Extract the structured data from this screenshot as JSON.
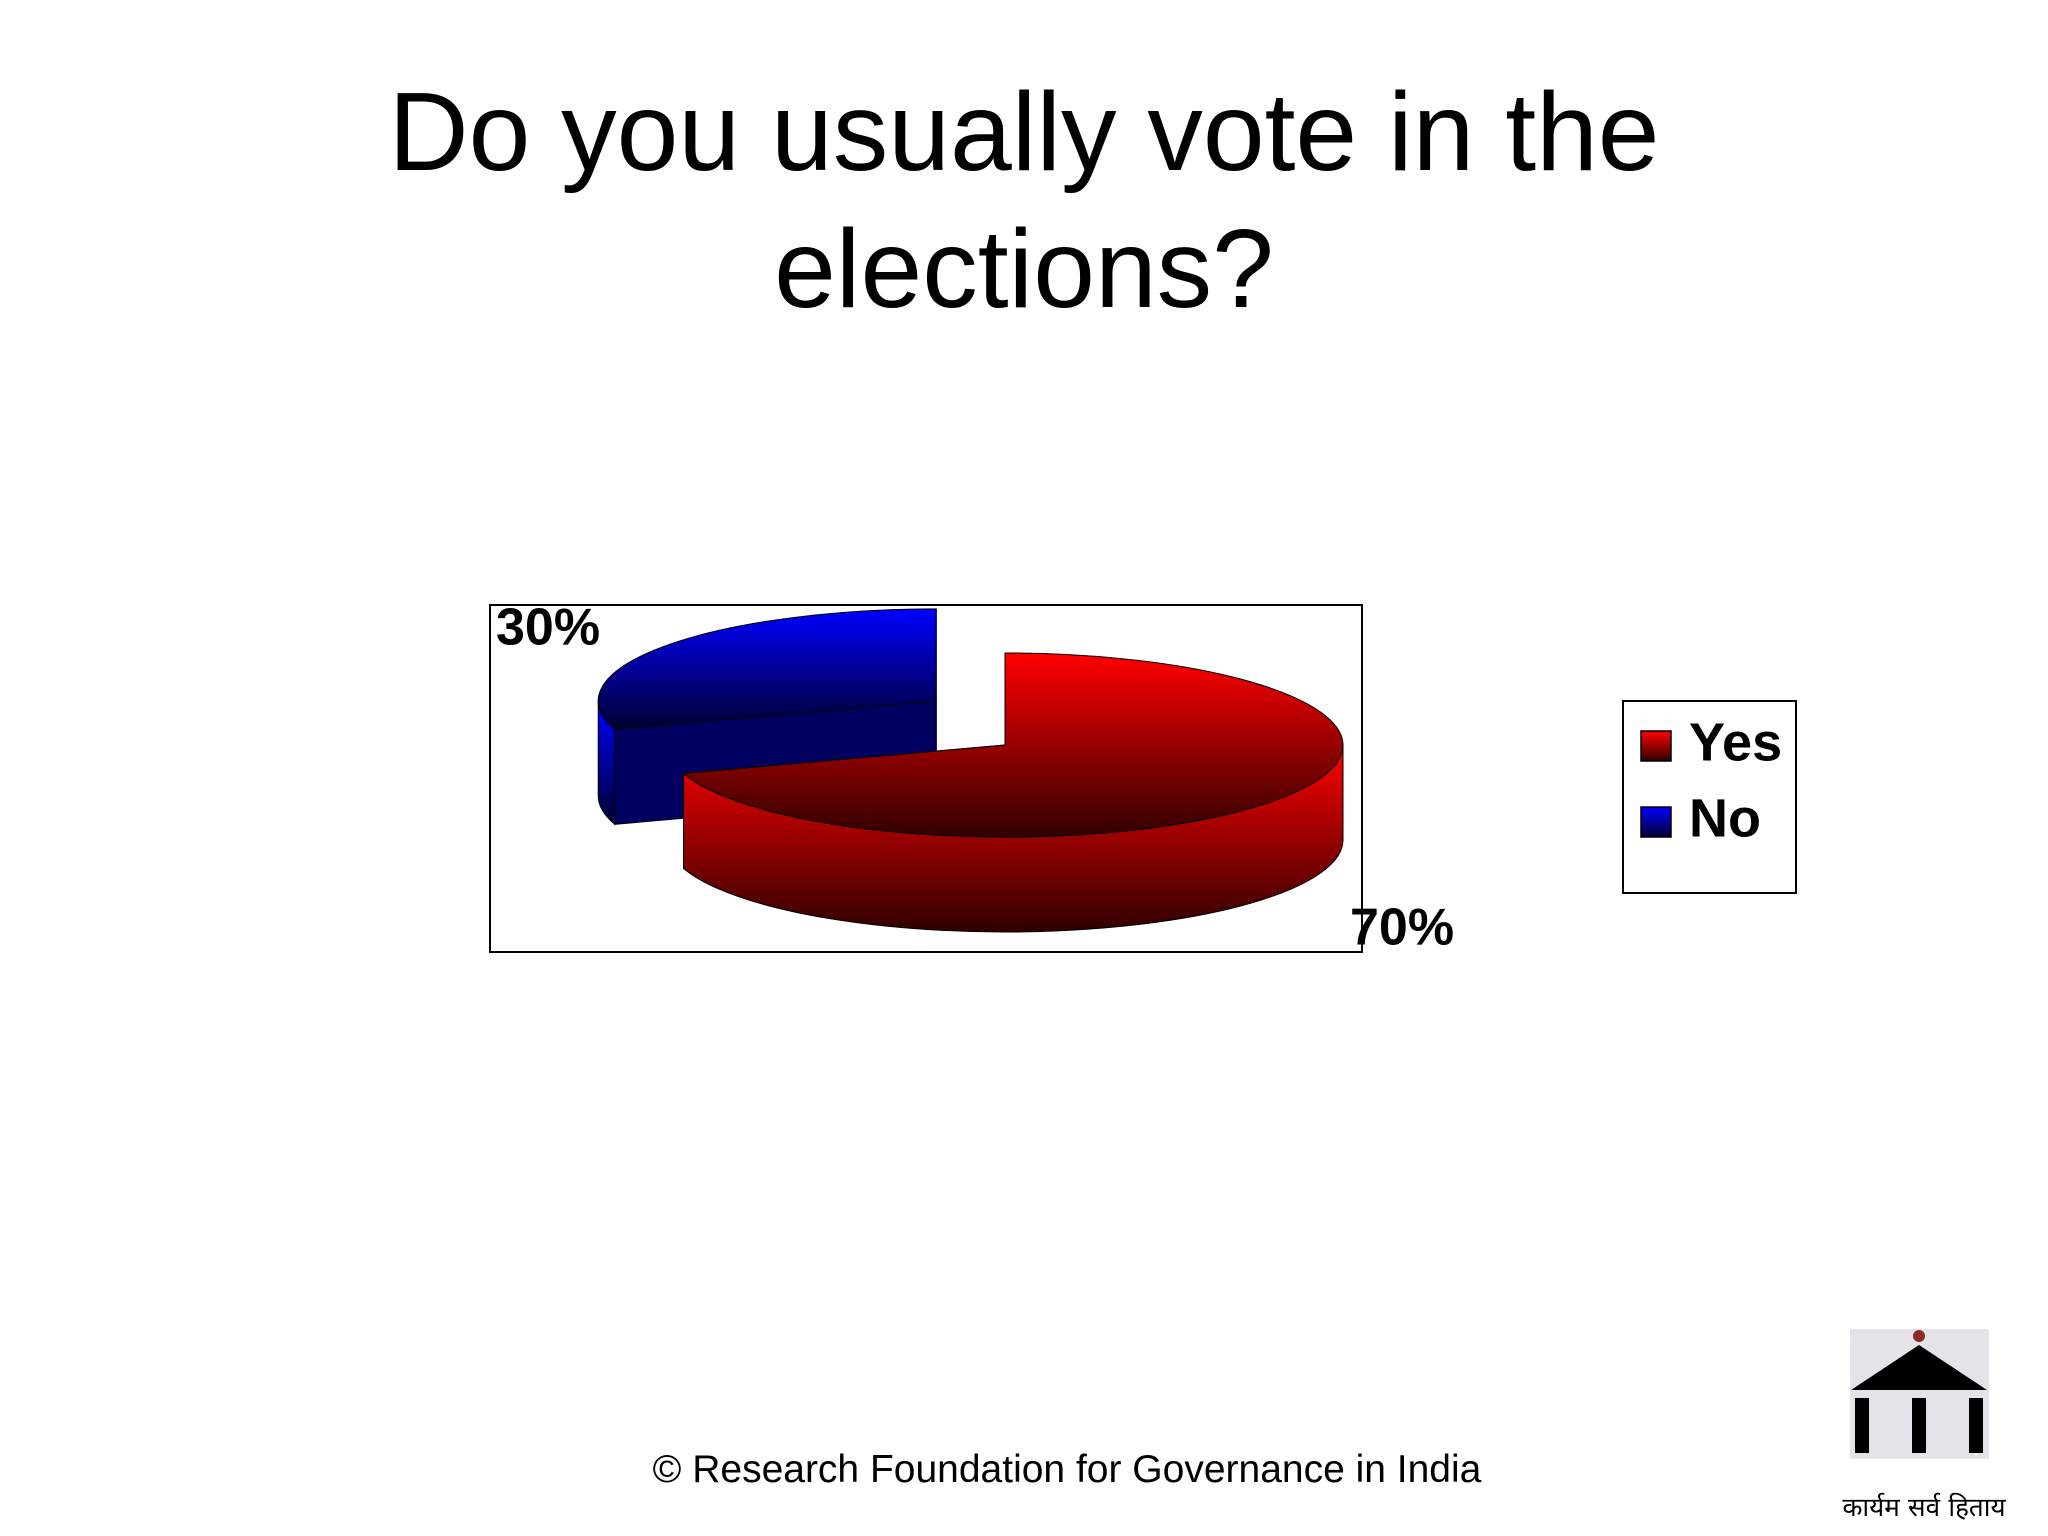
{
  "chart_data": {
    "type": "pie",
    "title": "Do you usually vote in the elections?",
    "categories": [
      "Yes",
      "No"
    ],
    "values": [
      70,
      30
    ],
    "value_labels": [
      "70%",
      "30%"
    ],
    "colors": [
      "#ff0000",
      "#0000ff"
    ],
    "legend": "right"
  },
  "footer": "© Research Foundation for Governance in India",
  "logo_text": "कार्यम सर्व हिताय"
}
